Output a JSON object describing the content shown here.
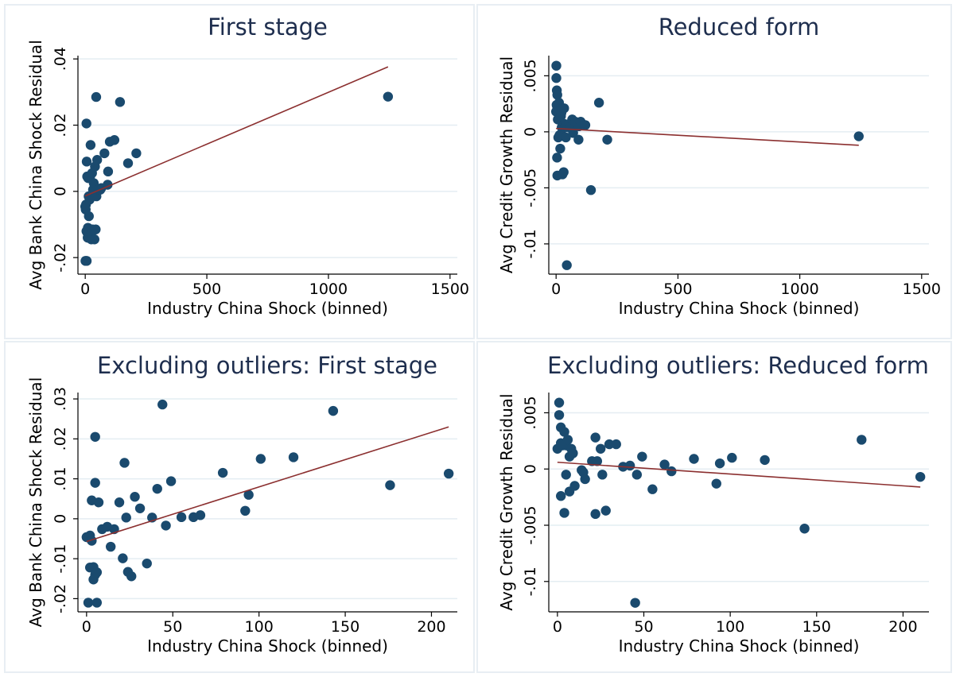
{
  "colors": {
    "marker": "#1a4a6e",
    "fit_line": "#8b2f2f",
    "grid": "#e4edf2",
    "title": "#1e2e4e"
  },
  "chart_data": [
    {
      "type": "scatter",
      "title": "First stage",
      "xlabel": "Industry China Shock (binned)",
      "ylabel": "Avg Bank China Shock Residual",
      "xlim": [
        -30,
        1530
      ],
      "ylim": [
        -0.025,
        0.041
      ],
      "xticks": [
        0,
        500,
        1000,
        1500
      ],
      "xtick_labels": [
        "0",
        "500",
        "1000",
        "1500"
      ],
      "yticks": [
        -0.02,
        0,
        0.02,
        0.04
      ],
      "ytick_labels": [
        "-.02",
        "0",
        ".02",
        ".04"
      ],
      "grid": true,
      "points": [
        [
          0,
          -0.0046
        ],
        [
          1,
          -0.021
        ],
        [
          2,
          -0.0055
        ],
        [
          3,
          -0.004
        ],
        [
          5,
          -0.012
        ],
        [
          5,
          0.0205
        ],
        [
          6,
          0.009
        ],
        [
          6,
          -0.021
        ],
        [
          8,
          0.0045
        ],
        [
          9,
          -0.0125
        ],
        [
          10,
          -0.014
        ],
        [
          11,
          -0.011
        ],
        [
          12,
          0.004
        ],
        [
          14,
          -0.0015
        ],
        [
          15,
          -0.0075
        ],
        [
          18,
          -0.0025
        ],
        [
          20,
          0.0045
        ],
        [
          22,
          0.014
        ],
        [
          24,
          -0.013
        ],
        [
          25,
          -0.0145
        ],
        [
          28,
          0.0055
        ],
        [
          30,
          -0.0115
        ],
        [
          32,
          0.0005
        ],
        [
          35,
          0.0025
        ],
        [
          38,
          -0.0145
        ],
        [
          40,
          0.0075
        ],
        [
          43,
          -0.0115
        ],
        [
          45,
          0.0285
        ],
        [
          46,
          -0.0015
        ],
        [
          49,
          0.0095
        ],
        [
          55,
          0.0005
        ],
        [
          62,
          0.0005
        ],
        [
          66,
          0.001
        ],
        [
          79,
          0.0115
        ],
        [
          92,
          0.002
        ],
        [
          94,
          0.006
        ],
        [
          101,
          0.015
        ],
        [
          120,
          0.0155
        ],
        [
          143,
          0.027
        ],
        [
          176,
          0.0085
        ],
        [
          210,
          0.0115
        ],
        [
          1245,
          0.0286
        ]
      ],
      "fit": [
        [
          0,
          -0.0014
        ],
        [
          1245,
          0.0376
        ]
      ]
    },
    {
      "type": "scatter",
      "title": "Reduced form",
      "xlabel": "Industry China Shock (binned)",
      "ylabel": "Avg Credit Growth Residual",
      "xlim": [
        -30,
        1530
      ],
      "ylim": [
        -0.0127,
        0.0068
      ],
      "xticks": [
        0,
        500,
        1000,
        1500
      ],
      "xtick_labels": [
        "0",
        "500",
        "1000",
        "1500"
      ],
      "yticks": [
        -0.01,
        -0.005,
        0,
        0.005
      ],
      "ytick_labels": [
        "-.01",
        "-.005",
        "0",
        ".005"
      ],
      "grid": true,
      "points": [
        [
          0,
          0.0018
        ],
        [
          1,
          0.0059
        ],
        [
          1,
          0.0048
        ],
        [
          2,
          0.0024
        ],
        [
          3,
          0.0037
        ],
        [
          4,
          -0.0023
        ],
        [
          5,
          0.0021
        ],
        [
          5,
          0.0033
        ],
        [
          5,
          -0.0039
        ],
        [
          6,
          0.0023
        ],
        [
          7,
          0.0011
        ],
        [
          9,
          -0.0005
        ],
        [
          10,
          0.0011
        ],
        [
          12,
          0.0026
        ],
        [
          14,
          -0.0003
        ],
        [
          17,
          -0.0015
        ],
        [
          18,
          0.0019
        ],
        [
          20,
          0.0014
        ],
        [
          21,
          -0.0002
        ],
        [
          22,
          0.0017
        ],
        [
          23,
          0.0004
        ],
        [
          26,
          -0.0038
        ],
        [
          28,
          0.0021
        ],
        [
          31,
          -0.0036
        ],
        [
          33,
          0.0021
        ],
        [
          35,
          0.0007
        ],
        [
          37,
          0.0004
        ],
        [
          40,
          -0.0005
        ],
        [
          44,
          -0.0119
        ],
        [
          45,
          0.0006
        ],
        [
          49,
          0.0004
        ],
        [
          55,
          0.0007
        ],
        [
          62,
          0.0005
        ],
        [
          66,
          0.0011
        ],
        [
          70,
          -0.0001
        ],
        [
          79,
          0.0009
        ],
        [
          92,
          -0.0007
        ],
        [
          94,
          0.0005
        ],
        [
          101,
          0.0009
        ],
        [
          120,
          0.0006
        ],
        [
          143,
          -0.0052
        ],
        [
          176,
          0.0026
        ],
        [
          210,
          -0.0007
        ],
        [
          1242,
          -0.0004
        ]
      ],
      "fit": [
        [
          0,
          0.0003
        ],
        [
          1242,
          -0.0012
        ]
      ]
    },
    {
      "type": "scatter",
      "title": "Excluding outliers: First stage",
      "xlabel": "Industry China Shock (binned)",
      "ylabel": "Avg Bank China Shock Residual",
      "xlim": [
        -5,
        215
      ],
      "ylim": [
        -0.0233,
        0.0316
      ],
      "xticks": [
        0,
        50,
        100,
        150,
        200
      ],
      "xtick_labels": [
        "0",
        "50",
        "100",
        "150",
        "200"
      ],
      "yticks": [
        -0.02,
        -0.01,
        0,
        0.01,
        0.02,
        0.03
      ],
      "ytick_labels": [
        "-.02",
        "-.01",
        "0",
        ".01",
        ".02",
        ".03"
      ],
      "grid": true,
      "points": [
        [
          0,
          -0.0046
        ],
        [
          1,
          -0.021
        ],
        [
          2,
          -0.0122
        ],
        [
          2,
          -0.0042
        ],
        [
          3,
          0.0046
        ],
        [
          3,
          -0.0055
        ],
        [
          4,
          -0.0121
        ],
        [
          4,
          -0.0152
        ],
        [
          5,
          -0.014
        ],
        [
          5,
          0.0205
        ],
        [
          5,
          0.009
        ],
        [
          6,
          -0.021
        ],
        [
          6,
          -0.0134
        ],
        [
          7,
          0.0041
        ],
        [
          9,
          -0.0026
        ],
        [
          12,
          -0.002
        ],
        [
          14,
          -0.007
        ],
        [
          16,
          -0.0026
        ],
        [
          19,
          0.0041
        ],
        [
          21,
          -0.0099
        ],
        [
          22,
          0.014
        ],
        [
          23,
          0.0003
        ],
        [
          24,
          -0.0133
        ],
        [
          26,
          -0.0144
        ],
        [
          28,
          0.0055
        ],
        [
          31,
          0.0026
        ],
        [
          35,
          -0.0112
        ],
        [
          38,
          0.0003
        ],
        [
          41,
          0.0075
        ],
        [
          44,
          0.0286
        ],
        [
          46,
          -0.0017
        ],
        [
          49,
          0.0094
        ],
        [
          55,
          0.0004
        ],
        [
          62,
          0.0004
        ],
        [
          66,
          0.0009
        ],
        [
          79,
          0.0115
        ],
        [
          92,
          0.002
        ],
        [
          94,
          0.006
        ],
        [
          101,
          0.015
        ],
        [
          120,
          0.0154
        ],
        [
          143,
          0.027
        ],
        [
          176,
          0.0084
        ],
        [
          210,
          0.0113
        ]
      ],
      "fit": [
        [
          0,
          -0.0057
        ],
        [
          210,
          0.023
        ]
      ]
    },
    {
      "type": "scatter",
      "title": "Excluding outliers: Reduced form",
      "xlabel": "Industry China Shock (binned)",
      "ylabel": "Avg Credit Growth Residual",
      "xlim": [
        -5,
        215
      ],
      "ylim": [
        -0.0127,
        0.0068
      ],
      "xticks": [
        0,
        50,
        100,
        150,
        200
      ],
      "xtick_labels": [
        "0",
        "50",
        "100",
        "150",
        "200"
      ],
      "yticks": [
        -0.01,
        -0.005,
        0,
        0.005
      ],
      "ytick_labels": [
        "-.01",
        "-.005",
        "0",
        ".005"
      ],
      "grid": true,
      "points": [
        [
          0,
          0.0018
        ],
        [
          1,
          0.0059
        ],
        [
          1,
          0.0048
        ],
        [
          2,
          0.0023
        ],
        [
          2,
          0.0037
        ],
        [
          2,
          -0.0024
        ],
        [
          3,
          0.0021
        ],
        [
          4,
          0.0033
        ],
        [
          4,
          -0.0039
        ],
        [
          5,
          -0.0005
        ],
        [
          5,
          0.0021
        ],
        [
          6,
          0.0026
        ],
        [
          7,
          -0.002
        ],
        [
          7,
          0.0011
        ],
        [
          8,
          0.0018
        ],
        [
          9,
          0.0014
        ],
        [
          10,
          -0.0015
        ],
        [
          14,
          -0.0001
        ],
        [
          15,
          -0.0003
        ],
        [
          16,
          -0.0009
        ],
        [
          20,
          0.0007
        ],
        [
          22,
          0.0028
        ],
        [
          22,
          -0.004
        ],
        [
          23,
          0.0007
        ],
        [
          25,
          0.0018
        ],
        [
          26,
          -0.0005
        ],
        [
          28,
          -0.0037
        ],
        [
          30,
          0.0022
        ],
        [
          34,
          0.0022
        ],
        [
          38,
          0.0002
        ],
        [
          42,
          0.0003
        ],
        [
          45,
          -0.0119
        ],
        [
          46,
          -0.0005
        ],
        [
          49,
          0.0011
        ],
        [
          55,
          -0.0018
        ],
        [
          62,
          0.0004
        ],
        [
          66,
          -0.0002
        ],
        [
          79,
          0.0009
        ],
        [
          92,
          -0.0013
        ],
        [
          94,
          0.0005
        ],
        [
          101,
          0.001
        ],
        [
          120,
          0.0008
        ],
        [
          143,
          -0.0053
        ],
        [
          176,
          0.0026
        ],
        [
          210,
          -0.0007
        ]
      ],
      "fit": [
        [
          0,
          0.0006
        ],
        [
          210,
          -0.0016
        ]
      ]
    }
  ]
}
